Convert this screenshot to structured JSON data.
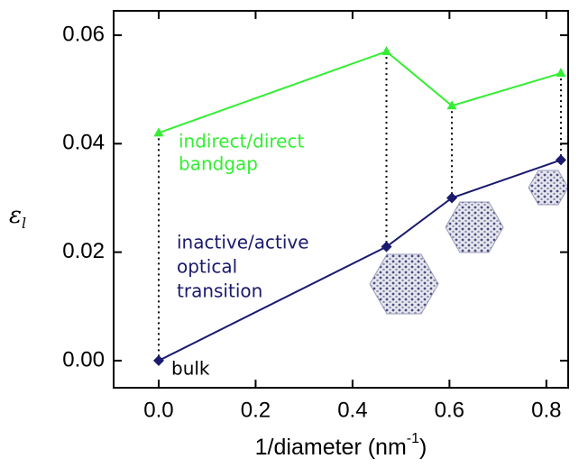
{
  "chart_data": {
    "type": "line",
    "x_label": [
      "1/diameter (nm",
      "-1",
      ")"
    ],
    "y_label": [
      "ε",
      "l"
    ],
    "x": [
      0,
      0.47,
      0.605,
      0.83
    ],
    "series": [
      {
        "color": "#33ee33",
        "marker": "triangle",
        "values": [
          0.042,
          0.057,
          0.047,
          0.053
        ]
      },
      {
        "color": "#1a1a6e",
        "marker": "diamond",
        "values": [
          0,
          0.021,
          0.03,
          0.037
        ]
      }
    ],
    "xlim": [
      -0.093,
      0.845
    ],
    "ylim": [
      -0.005,
      0.0645
    ],
    "xticks": [
      {
        "value": 0,
        "label": "0.0"
      },
      {
        "value": 0.2,
        "label": "0.2"
      },
      {
        "value": 0.4,
        "label": "0.4"
      },
      {
        "value": 0.6,
        "label": "0.6"
      },
      {
        "value": 0.8,
        "label": "0.8"
      }
    ],
    "yticks": [
      {
        "value": 0,
        "label": "0.00"
      },
      {
        "value": 0.02,
        "label": "0.02"
      },
      {
        "value": 0.04,
        "label": "0.04"
      },
      {
        "value": 0.06,
        "label": "0.06"
      }
    ],
    "annotations": {
      "bandgap": [
        "indirect/direct",
        "bandgap"
      ],
      "optical": [
        "inactive/active",
        "optical",
        "transition"
      ],
      "bulk": "bulk"
    }
  }
}
